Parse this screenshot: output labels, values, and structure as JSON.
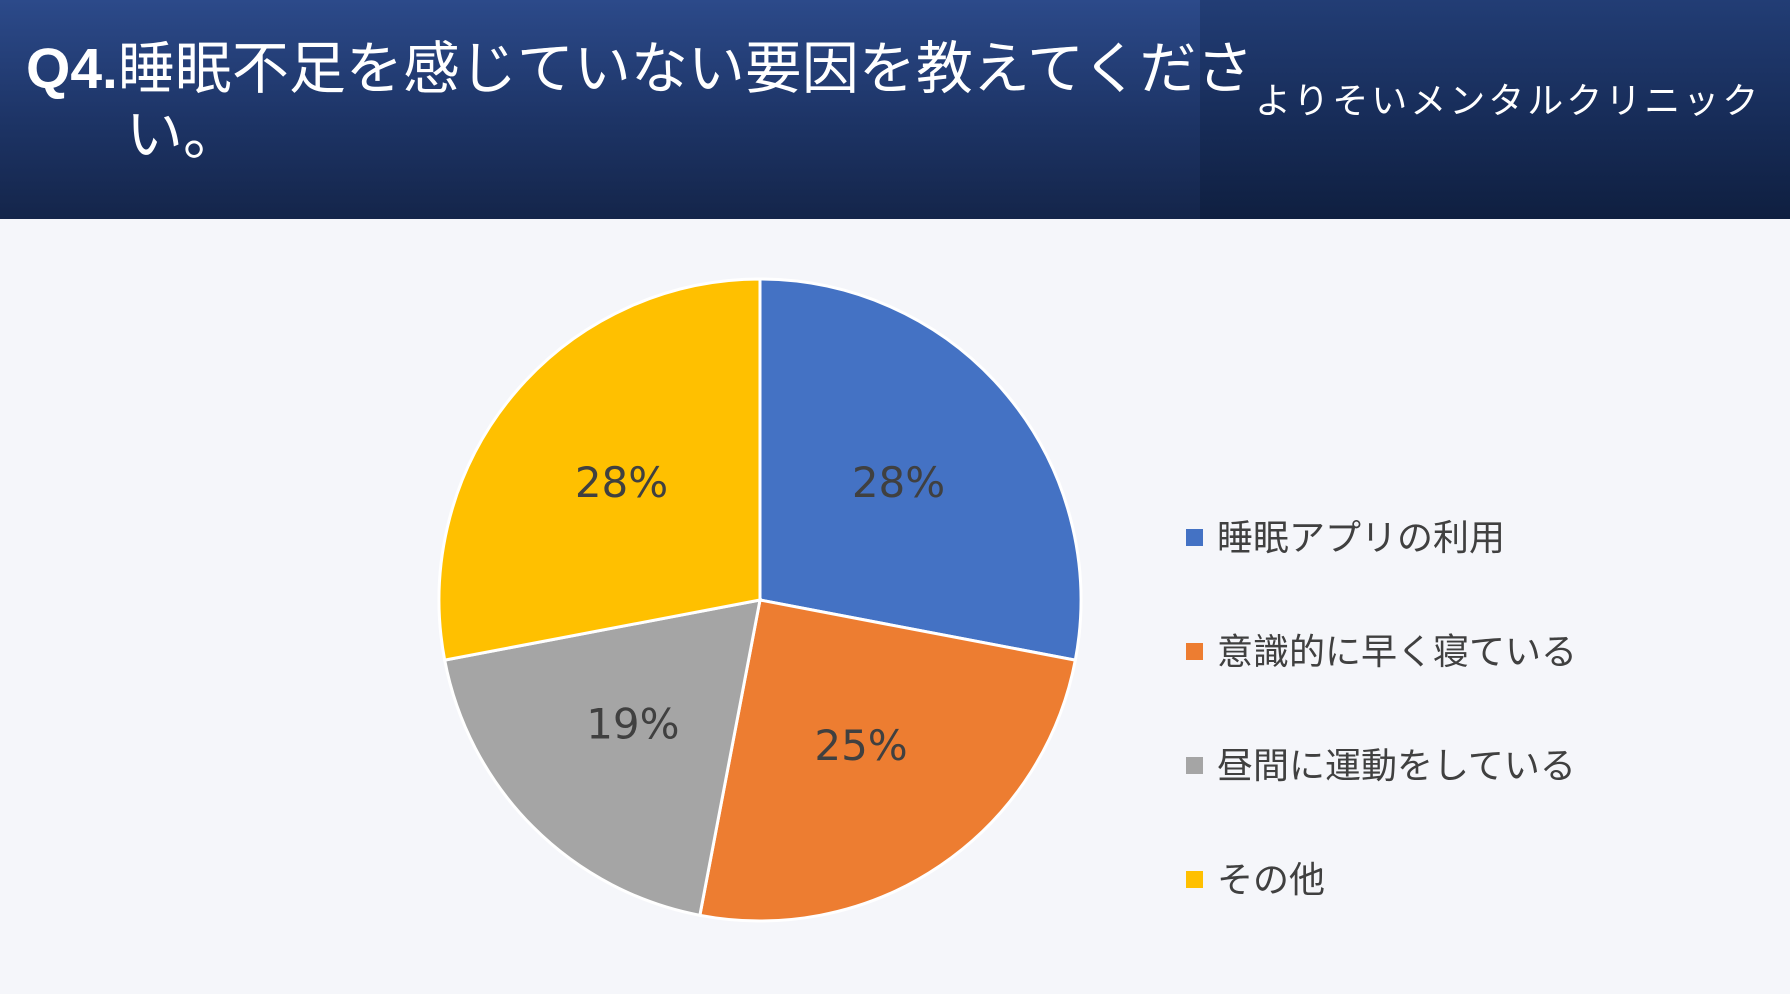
{
  "header": {
    "question_prefix": "Q4.",
    "title": "睡眠不足を感じていない要因を教えてください。",
    "clinic_name": "よりそいメンタルクリニック"
  },
  "chart_data": {
    "type": "pie",
    "slices": [
      {
        "label": "睡眠アプリの利用",
        "value": 28,
        "display": "28%",
        "color": "#4472c4"
      },
      {
        "label": "意識的に早く寝ている",
        "value": 25,
        "display": "25%",
        "color": "#ed7d31"
      },
      {
        "label": "昼間に運動をしている",
        "value": 19,
        "display": "19%",
        "color": "#a5a5a5"
      },
      {
        "label": "その他",
        "value": 28,
        "display": "28%",
        "color": "#ffc000"
      }
    ],
    "legend_position": "right"
  }
}
